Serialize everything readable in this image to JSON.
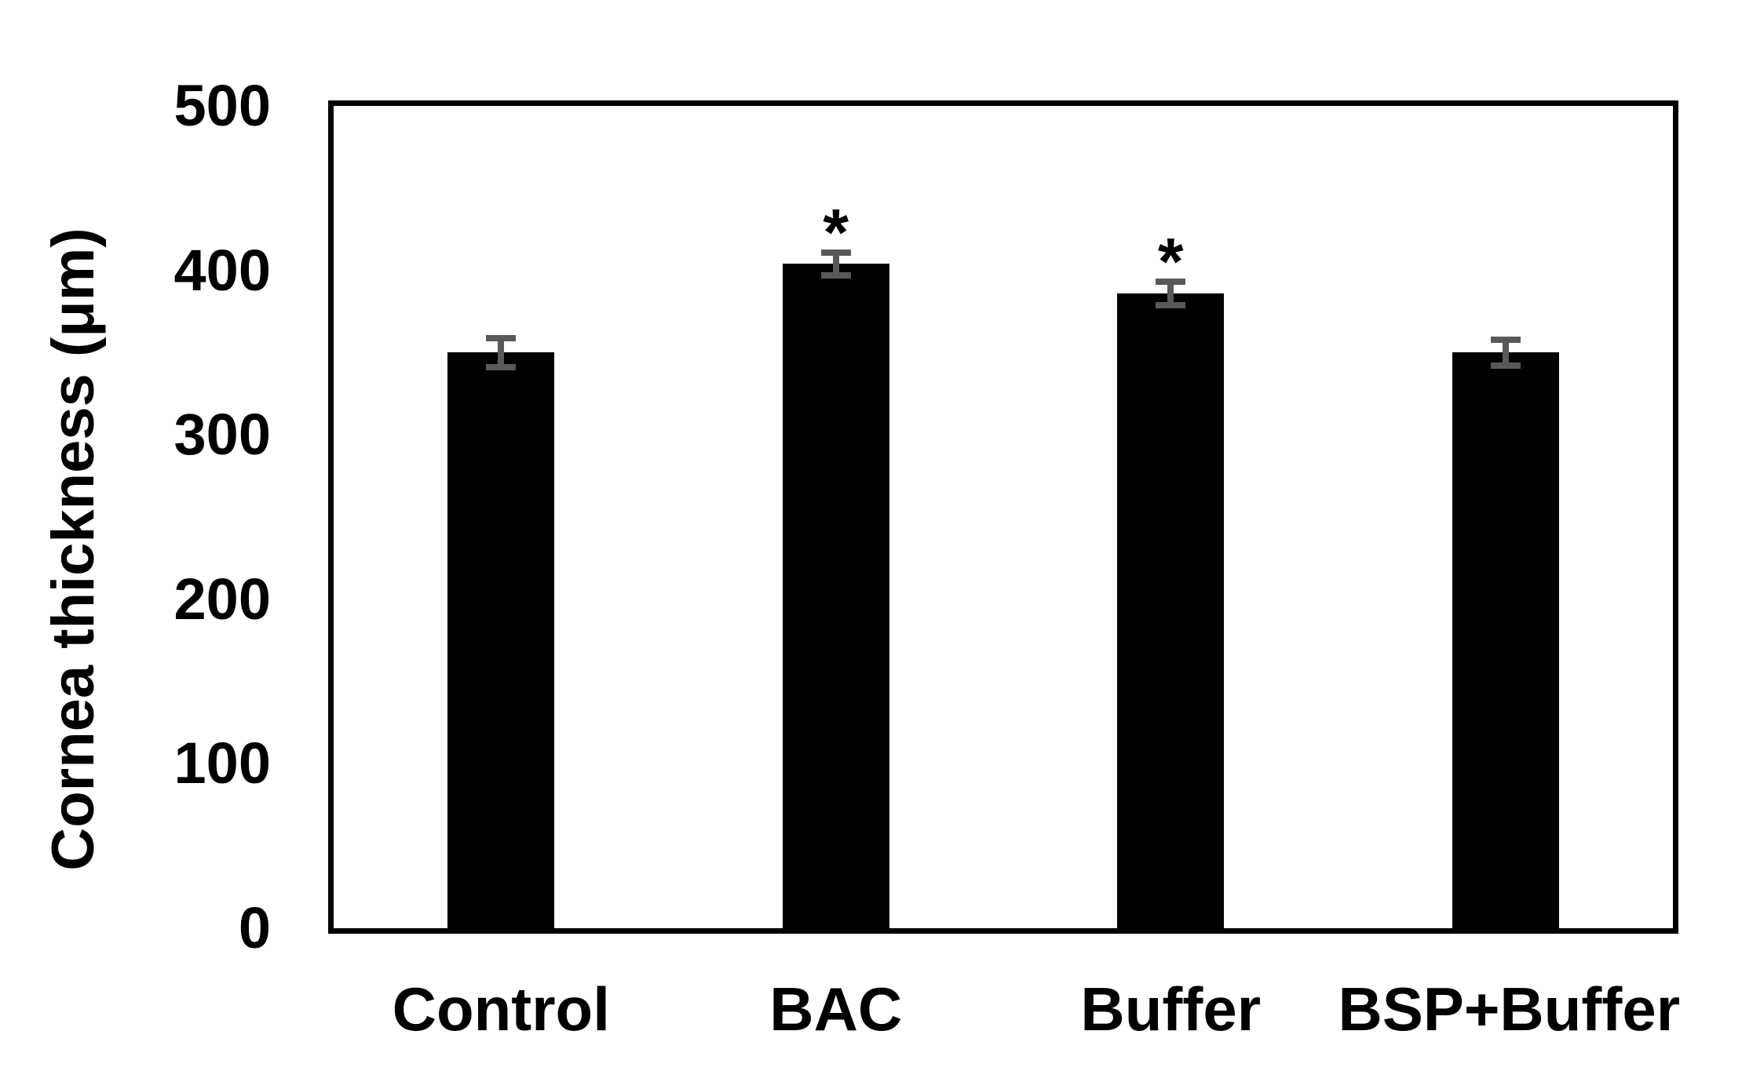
{
  "figure": {
    "background_color": "#ffffff"
  },
  "chart_data": {
    "type": "bar",
    "title": "",
    "xlabel": "",
    "ylabel": "Cornea thickness (μm)",
    "categories": [
      "Control",
      "BAC",
      "Buffer",
      "BSP+Buffer"
    ],
    "values": [
      350,
      404,
      386,
      350
    ],
    "error_bars": [
      9,
      7,
      7,
      8
    ],
    "significance_markers": [
      "",
      "*",
      "*",
      ""
    ],
    "ylim": [
      0,
      500
    ],
    "yticks": [
      0,
      100,
      200,
      300,
      400,
      500
    ],
    "bar_color": "#000000",
    "error_bar_color": "#595959",
    "text_color": "#000000",
    "plot_border_color": "#000000",
    "grid": false,
    "legend_position": "none"
  }
}
